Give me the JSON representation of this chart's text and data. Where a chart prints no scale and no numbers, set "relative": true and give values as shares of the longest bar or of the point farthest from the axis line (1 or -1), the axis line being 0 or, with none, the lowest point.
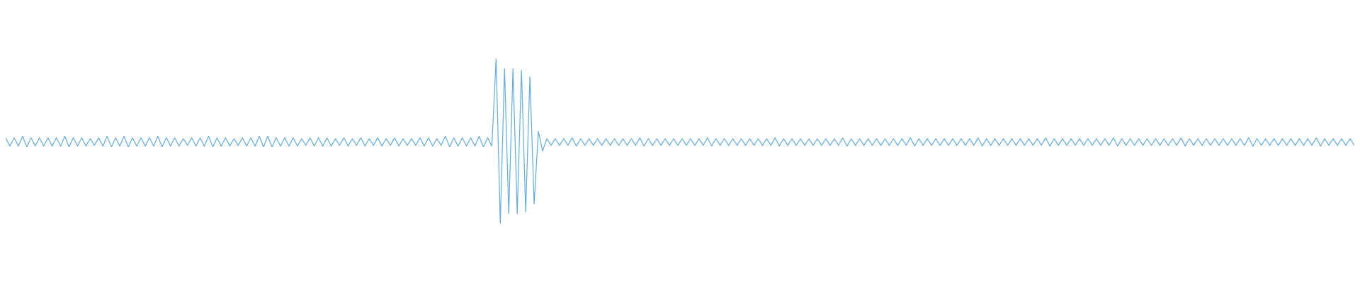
{
  "chart_data": {
    "type": "line",
    "relative": true,
    "line_style": "solid",
    "categories": [
      null,
      null,
      null,
      null,
      null,
      null,
      null,
      null,
      null,
      null,
      null,
      null,
      null,
      null,
      null,
      null,
      null,
      null,
      null,
      null,
      null,
      null,
      null,
      null,
      null,
      null,
      null,
      null,
      null,
      null,
      null,
      null,
      null,
      null,
      null,
      null,
      null,
      null,
      null,
      null,
      null,
      null,
      null,
      null,
      null,
      null,
      null,
      null,
      null,
      null,
      null,
      null,
      null,
      null,
      null,
      null,
      null,
      null,
      null,
      null,
      null,
      null,
      null,
      null,
      null,
      null,
      null,
      null,
      null,
      null,
      null,
      null,
      null,
      null,
      null,
      null,
      null,
      null,
      null,
      null,
      null,
      null,
      null,
      null,
      null,
      null,
      null,
      null,
      null,
      null,
      null,
      null,
      null,
      null,
      null,
      null,
      null,
      null,
      null,
      null,
      null,
      null,
      null,
      null,
      null,
      null,
      null,
      null,
      null,
      null,
      null,
      null,
      null,
      null,
      null,
      null,
      null,
      null,
      null,
      null,
      null,
      null,
      null,
      null,
      null,
      null,
      null,
      null,
      null,
      null,
      null,
      null,
      null,
      null,
      null,
      null,
      null,
      null,
      null,
      null,
      null,
      null,
      null,
      null,
      null,
      null,
      null,
      null,
      null,
      null,
      null,
      null,
      null,
      null,
      null,
      null,
      null,
      null,
      null,
      null,
      null,
      null,
      null,
      null,
      null,
      null,
      null,
      null,
      null,
      null,
      null,
      null,
      null,
      null,
      null,
      null,
      null,
      null,
      null,
      null,
      null,
      null,
      null,
      null,
      null,
      null,
      null,
      null,
      null,
      null,
      null,
      null,
      null,
      null,
      null,
      null,
      null,
      null,
      null,
      null,
      null,
      null,
      null,
      null,
      null,
      null,
      null,
      null,
      null,
      null,
      null,
      null,
      null,
      null,
      null,
      null,
      null,
      null,
      null,
      null,
      null,
      null,
      null,
      null,
      null,
      null,
      null,
      null,
      null,
      null,
      null,
      null,
      null,
      null,
      null,
      null,
      null,
      null,
      null,
      null,
      null,
      null,
      null,
      null,
      null,
      null,
      null,
      null,
      null,
      null,
      null,
      null,
      null,
      null,
      null,
      null,
      null,
      null,
      null,
      null,
      null,
      null,
      null,
      null,
      null,
      null,
      null,
      null,
      null,
      null,
      null,
      null,
      null,
      null,
      null,
      null,
      null,
      null,
      null,
      null,
      null,
      null,
      null,
      null,
      null,
      null,
      null,
      null,
      null,
      null,
      null,
      null,
      null,
      null,
      null,
      null,
      null,
      null,
      null,
      null,
      null,
      null,
      null,
      null,
      null,
      null,
      null,
      null,
      null,
      null,
      null,
      null,
      null,
      null,
      null,
      null,
      null,
      null,
      null,
      null
    ],
    "series": [
      {
        "color": "#60ace3",
        "values": [
          0.52,
          0.47,
          0.52,
          0.47,
          0.53,
          0.465,
          0.52,
          0.47,
          0.52,
          0.47,
          0.52,
          0.47,
          0.52,
          0.47,
          0.53,
          0.465,
          0.52,
          0.47,
          0.52,
          0.47,
          0.515,
          0.475,
          0.52,
          0.47,
          0.53,
          0.465,
          0.52,
          0.47,
          0.53,
          0.465,
          0.52,
          0.47,
          0.52,
          0.47,
          0.52,
          0.47,
          0.53,
          0.465,
          0.52,
          0.47,
          0.52,
          0.47,
          0.515,
          0.475,
          0.52,
          0.47,
          0.52,
          0.47,
          0.53,
          0.465,
          0.52,
          0.47,
          0.52,
          0.47,
          0.515,
          0.475,
          0.52,
          0.47,
          0.52,
          0.47,
          0.53,
          0.465,
          0.53,
          0.465,
          0.52,
          0.47,
          0.52,
          0.47,
          0.52,
          0.47,
          0.515,
          0.475,
          0.52,
          0.47,
          0.52,
          0.47,
          0.52,
          0.47,
          0.515,
          0.475,
          0.52,
          0.47,
          0.515,
          0.475,
          0.52,
          0.47,
          0.515,
          0.475,
          0.52,
          0.47,
          0.515,
          0.475,
          0.52,
          0.47,
          0.515,
          0.475,
          0.515,
          0.475,
          0.52,
          0.47,
          0.52,
          0.47,
          0.515,
          0.475,
          0.53,
          0.465,
          0.52,
          0.47,
          0.52,
          0.47,
          0.52,
          0.47,
          0.53,
          0.465,
          0.52,
          0.47,
          1,
          0,
          0.94,
          0.06,
          0.94,
          0.06,
          0.93,
          0.07,
          0.89,
          0.12,
          0.56,
          0.44,
          0.515,
          0.475,
          0.515,
          0.475,
          0.515,
          0.475,
          0.52,
          0.47,
          0.515,
          0.475,
          0.515,
          0.475,
          0.515,
          0.475,
          0.515,
          0.475,
          0.515,
          0.475,
          0.515,
          0.475,
          0.515,
          0.475,
          0.52,
          0.47,
          0.515,
          0.475,
          0.515,
          0.475,
          0.515,
          0.475,
          0.515,
          0.475,
          0.515,
          0.475,
          0.515,
          0.475,
          0.515,
          0.475,
          0.52,
          0.47,
          0.515,
          0.475,
          0.515,
          0.475,
          0.515,
          0.475,
          0.515,
          0.475,
          0.515,
          0.475,
          0.515,
          0.475,
          0.515,
          0.475,
          0.52,
          0.47,
          0.515,
          0.475,
          0.515,
          0.475,
          0.515,
          0.475,
          0.515,
          0.475,
          0.515,
          0.475,
          0.515,
          0.475,
          0.515,
          0.475,
          0.52,
          0.47,
          0.515,
          0.475,
          0.515,
          0.475,
          0.515,
          0.475,
          0.515,
          0.475,
          0.515,
          0.475,
          0.515,
          0.475,
          0.515,
          0.475,
          0.52,
          0.47,
          0.515,
          0.475,
          0.515,
          0.475,
          0.515,
          0.475,
          0.515,
          0.475,
          0.515,
          0.475,
          0.515,
          0.475,
          0.515,
          0.475,
          0.52,
          0.47,
          0.515,
          0.475,
          0.515,
          0.475,
          0.515,
          0.475,
          0.515,
          0.475,
          0.515,
          0.475,
          0.515,
          0.475,
          0.515,
          0.475,
          0.52,
          0.47,
          0.515,
          0.475,
          0.515,
          0.475,
          0.515,
          0.475,
          0.515,
          0.475,
          0.515,
          0.475,
          0.515,
          0.475,
          0.515,
          0.475,
          0.52,
          0.47,
          0.515,
          0.475,
          0.515,
          0.475,
          0.515,
          0.475,
          0.515,
          0.475,
          0.515,
          0.475,
          0.515,
          0.475,
          0.515,
          0.475,
          0.52,
          0.47,
          0.515,
          0.475,
          0.515,
          0.475,
          0.515,
          0.475,
          0.515,
          0.475,
          0.515,
          0.475,
          0.515,
          0.475,
          0.515,
          0.475,
          0.52,
          0.47,
          0.515,
          0.475,
          0.515,
          0.475,
          0.515,
          0.475,
          0.515,
          0.475,
          0.515,
          0.475,
          0.515,
          0.475,
          0.515,
          0.475,
          0.52,
          0.47,
          0.515,
          0.475,
          0.515,
          0.475,
          0.515,
          0.475,
          0.515,
          0.475
        ]
      }
    ]
  }
}
